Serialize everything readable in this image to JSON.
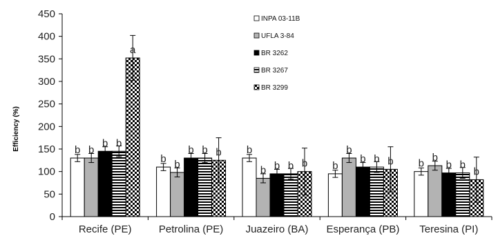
{
  "chart_data": {
    "type": "bar",
    "title": "",
    "xlabel": "",
    "ylabel": "Efficiency (%)",
    "ylim": [
      0,
      450
    ],
    "yticks": [
      "0",
      "50",
      "100",
      "150",
      "200",
      "250",
      "300",
      "350",
      "400",
      "450"
    ],
    "grid": false,
    "legend_position": "top-right",
    "categories": [
      "Recife (PE)",
      "Petrolina (PE)",
      "Juazeiro (BA)",
      "Esperança (PB)",
      "Teresina (PI)"
    ],
    "series": [
      {
        "name": "INPA 03-11B",
        "pattern": "white",
        "values": [
          130,
          110,
          130,
          95,
          100
        ],
        "errors": [
          8,
          8,
          8,
          8,
          8
        ],
        "letters": [
          "b",
          "b",
          "b",
          "b",
          "b"
        ]
      },
      {
        "name": "UFLA 3-84",
        "pattern": "gray",
        "values": [
          130,
          98,
          85,
          130,
          113
        ],
        "errors": [
          10,
          10,
          10,
          10,
          10
        ],
        "letters": [
          "b",
          "b",
          "b",
          "b",
          "b"
        ]
      },
      {
        "name": "BR 3262",
        "pattern": "black",
        "values": [
          145,
          130,
          95,
          110,
          97
        ],
        "errors": [
          10,
          10,
          10,
          10,
          10
        ],
        "letters": [
          "b",
          "b",
          "b",
          "b",
          "b"
        ]
      },
      {
        "name": "BR 3267",
        "pattern": "hstripes",
        "values": [
          145,
          130,
          95,
          110,
          97
        ],
        "errors": [
          12,
          10,
          12,
          12,
          12
        ],
        "letters": [
          "b",
          "b",
          "b",
          "b",
          "b"
        ]
      },
      {
        "name": "BR 3299",
        "pattern": "checker",
        "values": [
          352,
          125,
          100,
          105,
          82
        ],
        "errors": [
          50,
          50,
          52,
          50,
          50
        ],
        "letters": [
          "a",
          "b",
          "b",
          "b",
          "b"
        ]
      }
    ],
    "colors": {
      "white": "#ffffff",
      "gray": "#b3b3b3",
      "black": "#000000",
      "outline": "#000000"
    }
  }
}
